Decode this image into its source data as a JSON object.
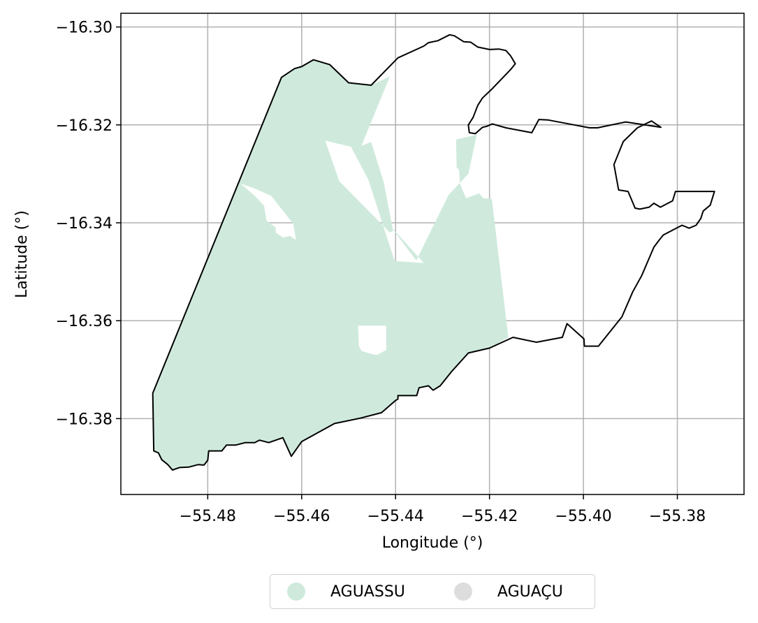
{
  "chart_data": {
    "type": "map",
    "xlabel": "Longitude (°)",
    "ylabel": "Latitude (°)",
    "xlim": [
      -55.4985,
      -55.3658
    ],
    "ylim": [
      -16.3955,
      -16.2972
    ],
    "xticks": [
      -55.48,
      -55.46,
      -55.44,
      -55.42,
      -55.4,
      -55.38
    ],
    "yticks": [
      -16.3,
      -16.32,
      -16.34,
      -16.36,
      -16.38
    ],
    "xtick_labels": [
      "−55.48",
      "−55.46",
      "−55.44",
      "−55.42",
      "−55.40",
      "−55.38"
    ],
    "ytick_labels": [
      "−16.30",
      "−16.32",
      "−16.34",
      "−16.36",
      "−16.38"
    ],
    "grid": true,
    "legend": {
      "placement": "bottom-center",
      "entries": [
        {
          "label": "AGUASSU",
          "color": "#cfeadd"
        },
        {
          "label": "AGUAÇU",
          "color": "#dddddd"
        }
      ]
    },
    "boundary_color": "#000000",
    "fill_color": "#cfeadd",
    "boundary": [
      [
        -55.4917,
        -16.3748
      ],
      [
        -55.4915,
        -16.3866
      ],
      [
        -55.4905,
        -16.387
      ],
      [
        -55.4898,
        -16.3884
      ],
      [
        -55.4885,
        -16.3894
      ],
      [
        -55.4875,
        -16.3905
      ],
      [
        -55.486,
        -16.39
      ],
      [
        -55.484,
        -16.3899
      ],
      [
        -55.482,
        -16.3894
      ],
      [
        -55.4808,
        -16.3895
      ],
      [
        -55.48,
        -16.3885
      ],
      [
        -55.4798,
        -16.3866
      ],
      [
        -55.477,
        -16.3866
      ],
      [
        -55.476,
        -16.3854
      ],
      [
        -55.474,
        -16.3854
      ],
      [
        -55.472,
        -16.3849
      ],
      [
        -55.47,
        -16.3849
      ],
      [
        -55.469,
        -16.3844
      ],
      [
        -55.467,
        -16.3849
      ],
      [
        -55.464,
        -16.3839
      ],
      [
        -55.4622,
        -16.3877
      ],
      [
        -55.46,
        -16.3847
      ],
      [
        -55.453,
        -16.381
      ],
      [
        -55.4475,
        -16.3799
      ],
      [
        -55.443,
        -16.3788
      ],
      [
        -55.44,
        -16.3763
      ],
      [
        -55.4395,
        -16.376
      ],
      [
        -55.4395,
        -16.3753
      ],
      [
        -55.4355,
        -16.3753
      ],
      [
        -55.435,
        -16.3737
      ],
      [
        -55.433,
        -16.3733
      ],
      [
        -55.432,
        -16.3742
      ],
      [
        -55.4305,
        -16.3733
      ],
      [
        -55.428,
        -16.3703
      ],
      [
        -55.4245,
        -16.3666
      ],
      [
        -55.42,
        -16.3656
      ],
      [
        -55.415,
        -16.3634
      ],
      [
        -55.41,
        -16.3644
      ],
      [
        -55.4045,
        -16.3634
      ],
      [
        -55.4035,
        -16.3606
      ],
      [
        -55.3999,
        -16.3637
      ],
      [
        -55.3998,
        -16.3652
      ],
      [
        -55.3968,
        -16.3652
      ],
      [
        -55.3918,
        -16.3592
      ],
      [
        -55.3895,
        -16.3541
      ],
      [
        -55.3876,
        -16.3508
      ],
      [
        -55.385,
        -16.345
      ],
      [
        -55.384,
        -16.3437
      ],
      [
        -55.383,
        -16.3425
      ],
      [
        -55.38,
        -16.341
      ],
      [
        -55.379,
        -16.3405
      ],
      [
        -55.3775,
        -16.3411
      ],
      [
        -55.376,
        -16.3405
      ],
      [
        -55.375,
        -16.3391
      ],
      [
        -55.3745,
        -16.3376
      ],
      [
        -55.373,
        -16.3364
      ],
      [
        -55.3721,
        -16.3336
      ],
      [
        -55.376,
        -16.3336
      ],
      [
        -55.38,
        -16.3336
      ],
      [
        -55.3804,
        -16.3336
      ],
      [
        -55.381,
        -16.3355
      ],
      [
        -55.3836,
        -16.3368
      ],
      [
        -55.385,
        -16.336
      ],
      [
        -55.386,
        -16.3368
      ],
      [
        -55.388,
        -16.3372
      ],
      [
        -55.389,
        -16.337
      ],
      [
        -55.3905,
        -16.3336
      ],
      [
        -55.3925,
        -16.3333
      ],
      [
        -55.3935,
        -16.3281
      ],
      [
        -55.3915,
        -16.3234
      ],
      [
        -55.3885,
        -16.3206
      ],
      [
        -55.3855,
        -16.3192
      ],
      [
        -55.3835,
        -16.3205
      ],
      [
        -55.391,
        -16.3194
      ],
      [
        -55.397,
        -16.3206
      ],
      [
        -55.3987,
        -16.3206
      ],
      [
        -55.402,
        -16.32
      ],
      [
        -55.4075,
        -16.319
      ],
      [
        -55.4095,
        -16.3189
      ],
      [
        -55.411,
        -16.3216
      ],
      [
        -55.4165,
        -16.3206
      ],
      [
        -55.4194,
        -16.3198
      ],
      [
        -55.4206,
        -16.3203
      ],
      [
        -55.4215,
        -16.3205
      ],
      [
        -55.423,
        -16.3218
      ],
      [
        -55.4243,
        -16.3216
      ],
      [
        -55.4245,
        -16.32
      ],
      [
        -55.4235,
        -16.3185
      ],
      [
        -55.4225,
        -16.316
      ],
      [
        -55.4215,
        -16.3145
      ],
      [
        -55.4195,
        -16.3127
      ],
      [
        -55.4155,
        -16.3087
      ],
      [
        -55.4145,
        -16.3075
      ],
      [
        -55.4155,
        -16.3059
      ],
      [
        -55.4165,
        -16.3048
      ],
      [
        -55.418,
        -16.3045
      ],
      [
        -55.42,
        -16.3046
      ],
      [
        -55.4225,
        -16.3041
      ],
      [
        -55.424,
        -16.3031
      ],
      [
        -55.4255,
        -16.303
      ],
      [
        -55.4275,
        -16.3018
      ],
      [
        -55.4285,
        -16.3016
      ],
      [
        -55.431,
        -16.3028
      ],
      [
        -55.433,
        -16.3032
      ],
      [
        -55.434,
        -16.3039
      ],
      [
        -55.4395,
        -16.3063
      ],
      [
        -55.4452,
        -16.3119
      ],
      [
        -55.45,
        -16.3114
      ],
      [
        -55.454,
        -16.3077
      ],
      [
        -55.4575,
        -16.3067
      ],
      [
        -55.46,
        -16.3081
      ],
      [
        -55.4615,
        -16.3085
      ],
      [
        -55.4643,
        -16.3103
      ],
      [
        -55.4917,
        -16.3748
      ]
    ],
    "fill_regions": [
      [
        [
          -55.4917,
          -16.3748
        ],
        [
          -55.4643,
          -16.3103
        ],
        [
          -55.4615,
          -16.3085
        ],
        [
          -55.4575,
          -16.3067
        ],
        [
          -55.454,
          -16.3077
        ],
        [
          -55.45,
          -16.3114
        ],
        [
          -55.4452,
          -16.3119
        ],
        [
          -55.4412,
          -16.3101
        ],
        [
          -55.4473,
          -16.3243
        ],
        [
          -55.4452,
          -16.3235
        ],
        [
          -55.4425,
          -16.3318
        ],
        [
          -55.4406,
          -16.3413
        ],
        [
          -55.4356,
          -16.3477
        ],
        [
          -55.4287,
          -16.3343
        ],
        [
          -55.4245,
          -16.33
        ],
        [
          -55.4227,
          -16.322
        ],
        [
          -55.4271,
          -16.323
        ],
        [
          -55.427,
          -16.3287
        ],
        [
          -55.4265,
          -16.3292
        ],
        [
          -55.4263,
          -16.332
        ],
        [
          -55.425,
          -16.335
        ],
        [
          -55.4222,
          -16.334
        ],
        [
          -55.4213,
          -16.335
        ],
        [
          -55.4195,
          -16.3351
        ],
        [
          -55.416,
          -16.3634
        ],
        [
          -55.42,
          -16.3656
        ],
        [
          -55.4245,
          -16.3666
        ],
        [
          -55.428,
          -16.3703
        ],
        [
          -55.4305,
          -16.3733
        ],
        [
          -55.432,
          -16.3742
        ],
        [
          -55.433,
          -16.3733
        ],
        [
          -55.435,
          -16.3737
        ],
        [
          -55.4355,
          -16.3753
        ],
        [
          -55.4395,
          -16.3753
        ],
        [
          -55.44,
          -16.3763
        ],
        [
          -55.443,
          -16.3788
        ],
        [
          -55.4475,
          -16.3799
        ],
        [
          -55.453,
          -16.381
        ],
        [
          -55.46,
          -16.3847
        ],
        [
          -55.4622,
          -16.3877
        ],
        [
          -55.464,
          -16.3839
        ],
        [
          -55.467,
          -16.3849
        ],
        [
          -55.469,
          -16.3844
        ],
        [
          -55.47,
          -16.3849
        ],
        [
          -55.472,
          -16.3849
        ],
        [
          -55.474,
          -16.3854
        ],
        [
          -55.476,
          -16.3854
        ],
        [
          -55.477,
          -16.3866
        ],
        [
          -55.4798,
          -16.3866
        ],
        [
          -55.48,
          -16.3885
        ],
        [
          -55.4808,
          -16.3895
        ],
        [
          -55.482,
          -16.3894
        ],
        [
          -55.484,
          -16.3899
        ],
        [
          -55.486,
          -16.39
        ],
        [
          -55.4875,
          -16.3905
        ],
        [
          -55.4885,
          -16.3894
        ],
        [
          -55.4898,
          -16.3884
        ],
        [
          -55.4905,
          -16.387
        ],
        [
          -55.4915,
          -16.3866
        ],
        [
          -55.4917,
          -16.3748
        ]
      ]
    ],
    "holes": [
      [
        [
          -55.473,
          -16.332
        ],
        [
          -55.47,
          -16.3345
        ],
        [
          -55.468,
          -16.3365
        ],
        [
          -55.4675,
          -16.3395
        ],
        [
          -55.4655,
          -16.341
        ],
        [
          -55.4655,
          -16.342
        ],
        [
          -55.464,
          -16.343
        ],
        [
          -55.4625,
          -16.3427
        ],
        [
          -55.4612,
          -16.3435
        ],
        [
          -55.4618,
          -16.3402
        ],
        [
          -55.4665,
          -16.3345
        ],
        [
          -55.47,
          -16.333
        ]
      ],
      [
        [
          -55.455,
          -16.3232
        ],
        [
          -55.4495,
          -16.3245
        ],
        [
          -55.4458,
          -16.3312
        ],
        [
          -55.4402,
          -16.3478
        ],
        [
          -55.434,
          -16.3482
        ],
        [
          -55.4403,
          -16.3415
        ],
        [
          -55.4412,
          -16.342
        ],
        [
          -55.452,
          -16.3315
        ]
      ],
      [
        [
          -55.448,
          -16.361
        ],
        [
          -55.442,
          -16.361
        ],
        [
          -55.442,
          -16.366
        ],
        [
          -55.444,
          -16.367
        ],
        [
          -55.4455,
          -16.3667
        ],
        [
          -55.4472,
          -16.3662
        ],
        [
          -55.4478,
          -16.3652
        ]
      ]
    ]
  }
}
